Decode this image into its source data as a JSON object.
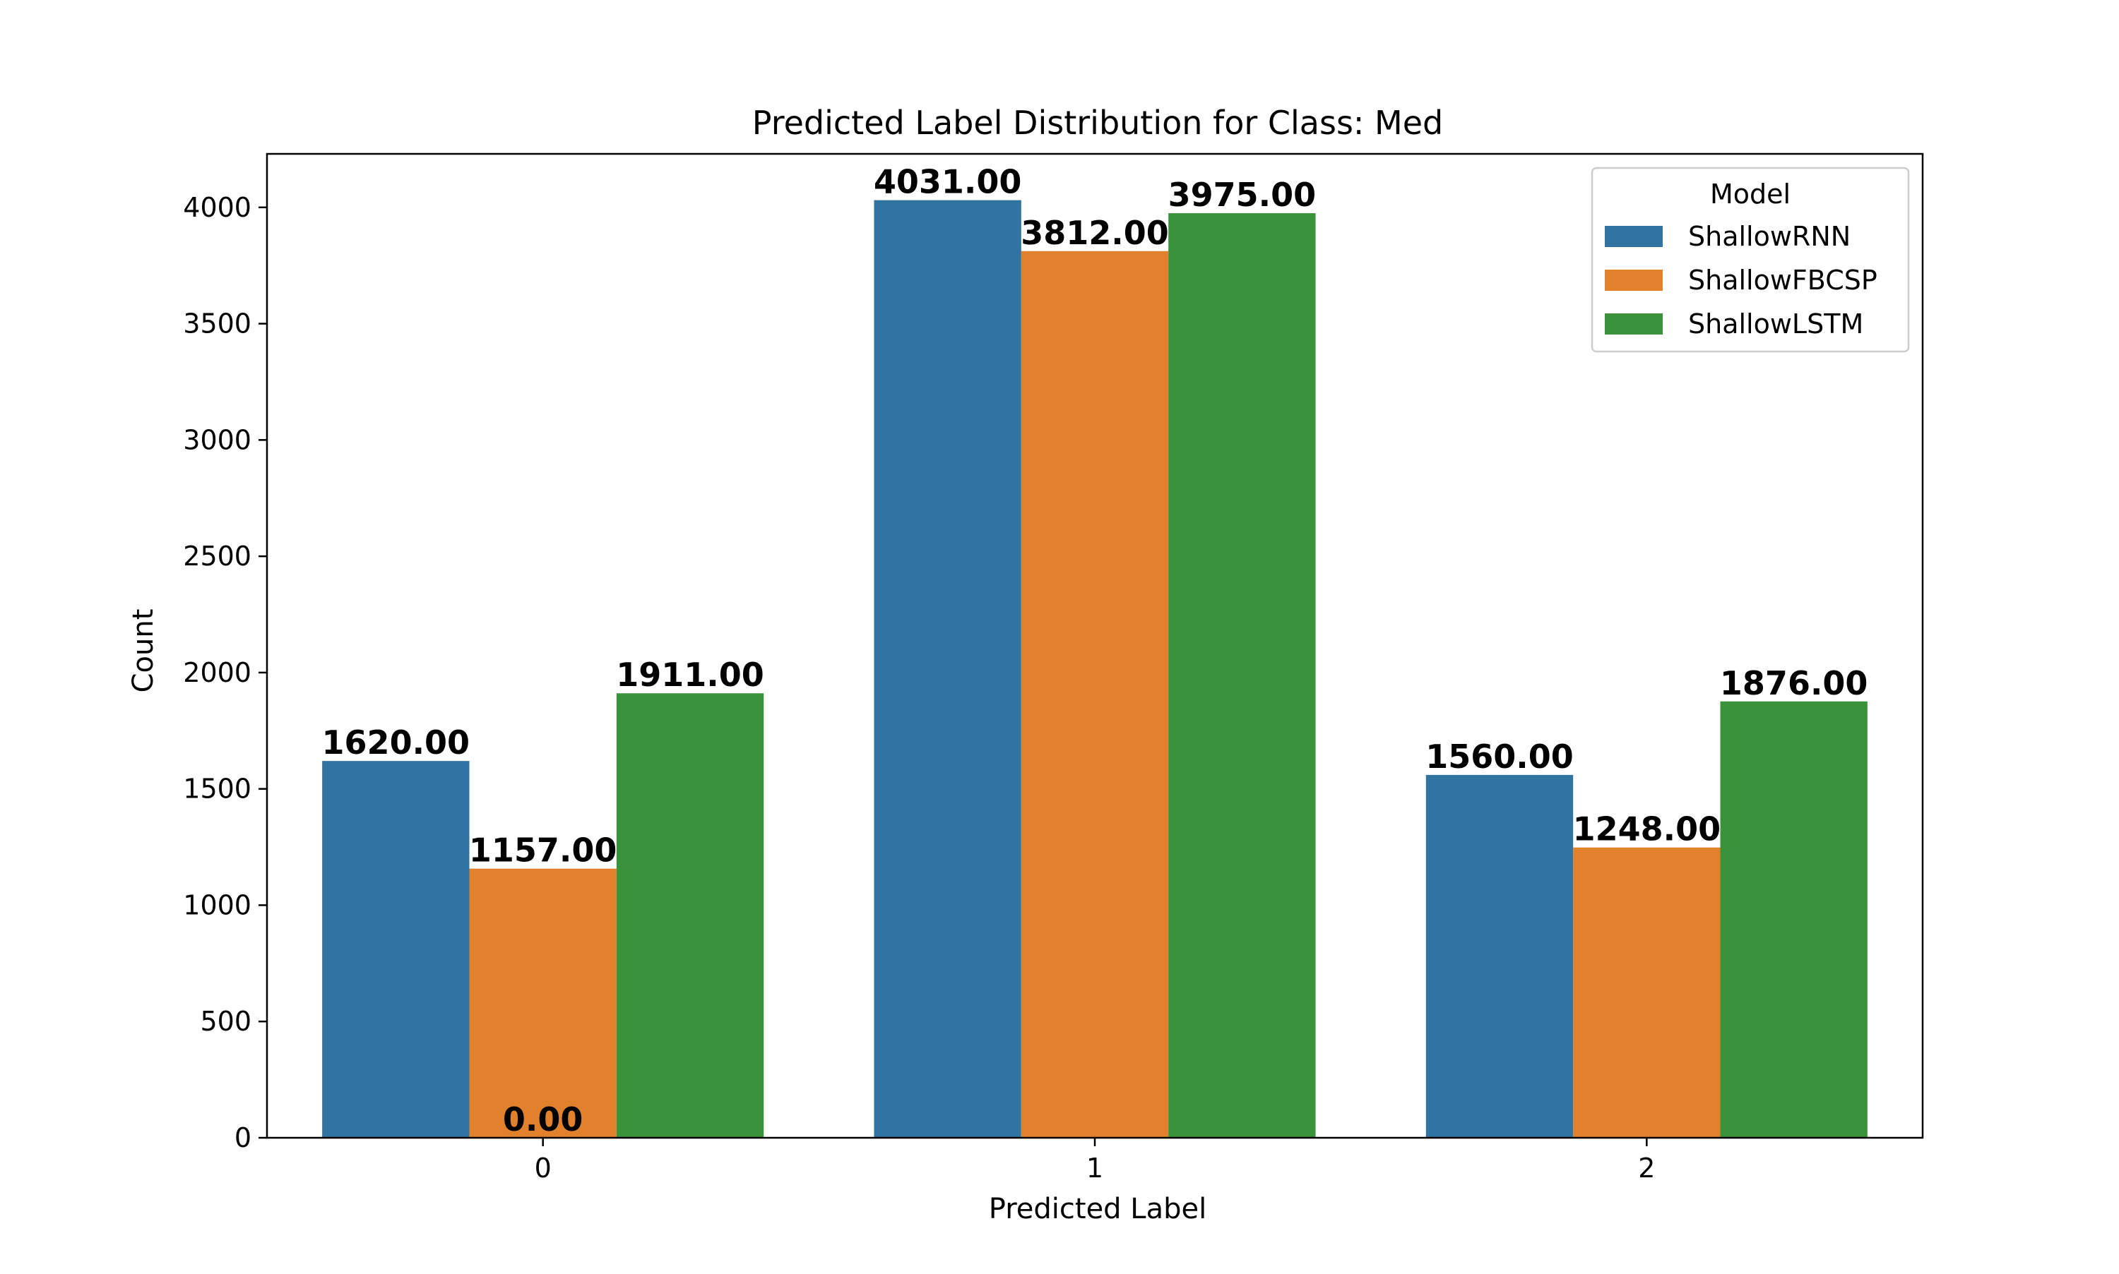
{
  "chart_data": {
    "type": "bar",
    "title": "Predicted Label Distribution for Class: Med",
    "xlabel": "Predicted Label",
    "ylabel": "Count",
    "categories": [
      "0",
      "1",
      "2"
    ],
    "series": [
      {
        "name": "ShallowRNN",
        "color": "#3274a1",
        "values": [
          1620,
          4031,
          1560
        ],
        "labels": [
          "1620.00",
          "4031.00",
          "1560.00"
        ]
      },
      {
        "name": "ShallowFBCSP",
        "color": "#e1812c",
        "values": [
          1157,
          3812,
          1248
        ],
        "labels": [
          "1157.00",
          "3812.00",
          "1248.00"
        ]
      },
      {
        "name": "ShallowLSTM",
        "color": "#3a923a",
        "values": [
          1911,
          3975,
          1876
        ],
        "labels": [
          "1911.00",
          "3975.00",
          "1876.00"
        ]
      }
    ],
    "extra_labels": [
      {
        "category": "0",
        "series": "ShallowFBCSP",
        "value": 0,
        "label": "0.00"
      }
    ],
    "ylim": [
      0,
      4230
    ],
    "yticks": [
      0,
      500,
      1000,
      1500,
      2000,
      2500,
      3000,
      3500,
      4000
    ],
    "grid": false,
    "legend": {
      "title": "Model",
      "position": "top-right"
    }
  }
}
